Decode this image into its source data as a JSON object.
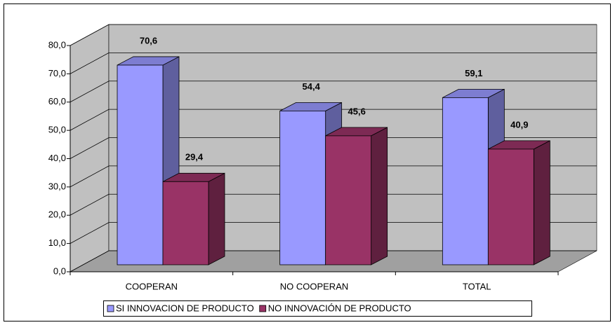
{
  "chart_data": {
    "type": "bar3d",
    "categories": [
      "COOPERAN",
      "NO COOPERAN",
      "TOTAL"
    ],
    "series": [
      {
        "name": "SI INNOVACION DE PRODUCTO",
        "color": "#9999ff",
        "values": [
          70.6,
          54.4,
          59.1
        ],
        "value_labels": [
          "70,6",
          "54,4",
          "59,1"
        ]
      },
      {
        "name": "NO INNOVACIÓN DE PRODUCTO",
        "color": "#993366",
        "values": [
          29.4,
          45.6,
          40.9
        ],
        "value_labels": [
          "29,4",
          "45,6",
          "40,9"
        ]
      }
    ],
    "ylim": [
      0,
      80
    ],
    "yticks": [
      {
        "value": 0,
        "label": "0,0"
      },
      {
        "value": 10,
        "label": "10,0"
      },
      {
        "value": 20,
        "label": "20,0"
      },
      {
        "value": 30,
        "label": "30,0"
      },
      {
        "value": 40,
        "label": "40,0"
      },
      {
        "value": 50,
        "label": "50,0"
      },
      {
        "value": 60,
        "label": "60,0"
      },
      {
        "value": 70,
        "label": "70,0"
      },
      {
        "value": 80,
        "label": "80,0"
      }
    ],
    "grid": true
  }
}
